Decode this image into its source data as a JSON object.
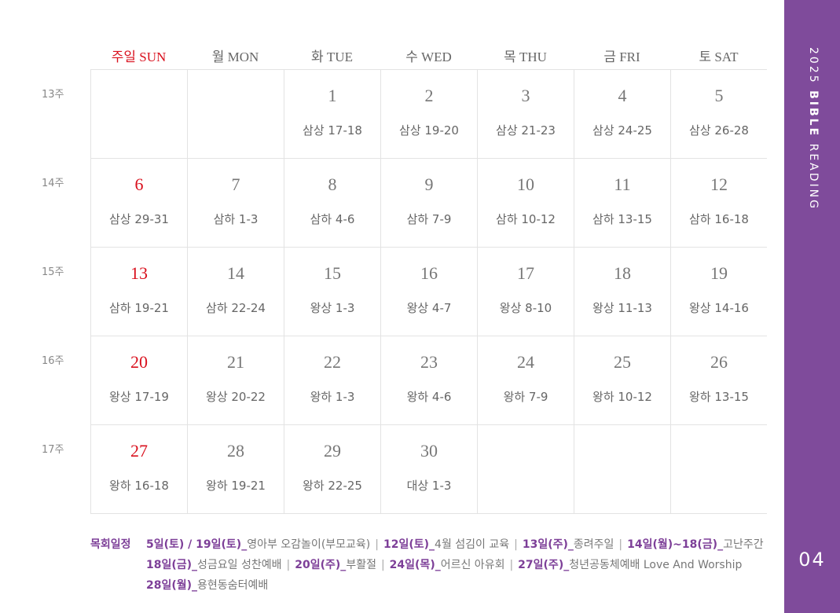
{
  "days": [
    "주일 SUN",
    "월 MON",
    "화 TUE",
    "수 WED",
    "목 THU",
    "금 FRI",
    "토 SAT"
  ],
  "weeks": [
    {
      "label": "13주",
      "cells": [
        {
          "n": "",
          "r": ""
        },
        {
          "n": "",
          "r": ""
        },
        {
          "n": "1",
          "r": "삼상 17-18"
        },
        {
          "n": "2",
          "r": "삼상 19-20"
        },
        {
          "n": "3",
          "r": "삼상 21-23"
        },
        {
          "n": "4",
          "r": "삼상 24-25"
        },
        {
          "n": "5",
          "r": "삼상 26-28"
        }
      ]
    },
    {
      "label": "14주",
      "cells": [
        {
          "n": "6",
          "r": "삼상 29-31"
        },
        {
          "n": "7",
          "r": "삼하 1-3"
        },
        {
          "n": "8",
          "r": "삼하 4-6"
        },
        {
          "n": "9",
          "r": "삼하 7-9"
        },
        {
          "n": "10",
          "r": "삼하 10-12"
        },
        {
          "n": "11",
          "r": "삼하 13-15"
        },
        {
          "n": "12",
          "r": "삼하 16-18"
        }
      ]
    },
    {
      "label": "15주",
      "cells": [
        {
          "n": "13",
          "r": "삼하 19-21"
        },
        {
          "n": "14",
          "r": "삼하 22-24"
        },
        {
          "n": "15",
          "r": "왕상 1-3"
        },
        {
          "n": "16",
          "r": "왕상 4-7"
        },
        {
          "n": "17",
          "r": "왕상 8-10"
        },
        {
          "n": "18",
          "r": "왕상 11-13"
        },
        {
          "n": "19",
          "r": "왕상 14-16"
        }
      ]
    },
    {
      "label": "16주",
      "cells": [
        {
          "n": "20",
          "r": "왕상 17-19"
        },
        {
          "n": "21",
          "r": "왕상 20-22"
        },
        {
          "n": "22",
          "r": "왕하 1-3"
        },
        {
          "n": "23",
          "r": "왕하 4-6"
        },
        {
          "n": "24",
          "r": "왕하 7-9"
        },
        {
          "n": "25",
          "r": "왕하 10-12"
        },
        {
          "n": "26",
          "r": "왕하 13-15"
        }
      ]
    },
    {
      "label": "17주",
      "cells": [
        {
          "n": "27",
          "r": "왕하 16-18"
        },
        {
          "n": "28",
          "r": "왕하 19-21"
        },
        {
          "n": "29",
          "r": "왕하 22-25"
        },
        {
          "n": "30",
          "r": "대상 1-3"
        },
        {
          "n": "",
          "r": ""
        },
        {
          "n": "",
          "r": ""
        },
        {
          "n": "",
          "r": ""
        }
      ]
    }
  ],
  "notes": {
    "title": "목회일정",
    "lines": [
      [
        {
          "d": "5일(토) / 19일(토)_",
          "t": "영아부 오감놀이(부모교육)"
        },
        {
          "d": "12일(토)_",
          "t": "4월 섬김이 교육"
        },
        {
          "d": "13일(주)_",
          "t": "종려주일"
        },
        {
          "d": "14일(월)~18(금)_",
          "t": "고난주간"
        }
      ],
      [
        {
          "d": "18일(금)_",
          "t": "성금요일 성찬예배"
        },
        {
          "d": "20일(주)_",
          "t": "부활절"
        },
        {
          "d": "24일(목)_",
          "t": "어르신 아유회"
        },
        {
          "d": "27일(주)_",
          "t": "청년공동체예배 Love And Worship"
        }
      ],
      [
        {
          "d": "28일(월)_",
          "t": "용현동숨터예배"
        }
      ]
    ]
  },
  "side": {
    "year": "2025",
    "bold": "BIBLE",
    "rest": "READING",
    "page": "04"
  },
  "colors": {
    "accent": "#7f4b9b",
    "sunday": "#d9101d"
  }
}
